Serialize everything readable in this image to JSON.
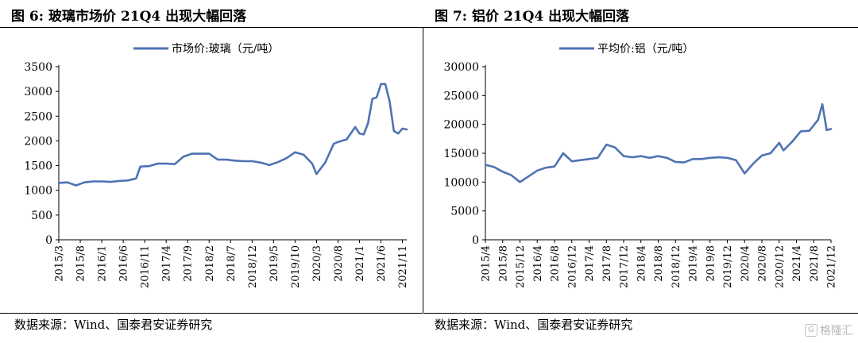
{
  "panels": [
    {
      "fig_no": "图 6:",
      "title": "玻璃市场价 21Q4 出现大幅回落",
      "source": "数据来源：Wind、国泰君安证券研究"
    },
    {
      "fig_no": "图 7:",
      "title": "铝价 21Q4 出现大幅回落",
      "source": "数据来源：Wind、国泰君安证券研究"
    }
  ],
  "watermark": "格隆汇",
  "colors": {
    "series": "#4f73b3"
  },
  "chart_data": [
    {
      "type": "line",
      "title": "",
      "ylim": [
        0,
        3500
      ],
      "yticks": [
        0,
        500,
        1000,
        1500,
        2000,
        2500,
        3000,
        3500
      ],
      "xlim": [
        "2015-03",
        "2021-12"
      ],
      "xtick_labels": [
        "2015/3",
        "2015/8",
        "2016/1",
        "2016/6",
        "2016/11",
        "2017/4",
        "2017/9",
        "2018/2",
        "2018/7",
        "2018/12",
        "2019/5",
        "2019/10",
        "2020/3",
        "2020/8",
        "2021/1",
        "2021/6",
        "2021/11"
      ],
      "legend": "top-center",
      "grid": false,
      "series": [
        {
          "name": "市场价:玻璃（元/吨）",
          "x": [
            "2015-03",
            "2015-05",
            "2015-07",
            "2015-09",
            "2015-11",
            "2016-01",
            "2016-03",
            "2016-05",
            "2016-07",
            "2016-09",
            "2016-10",
            "2016-12",
            "2017-02",
            "2017-04",
            "2017-06",
            "2017-08",
            "2017-10",
            "2017-12",
            "2018-02",
            "2018-04",
            "2018-06",
            "2018-08",
            "2018-10",
            "2018-12",
            "2019-02",
            "2019-04",
            "2019-06",
            "2019-08",
            "2019-10",
            "2019-12",
            "2020-02",
            "2020-03",
            "2020-05",
            "2020-07",
            "2020-08",
            "2020-10",
            "2020-12",
            "2021-01",
            "2021-02",
            "2021-03",
            "2021-04",
            "2021-05",
            "2021-06",
            "2021-07",
            "2021-08",
            "2021-09",
            "2021-10",
            "2021-11",
            "2021-12"
          ],
          "y": [
            1150,
            1160,
            1100,
            1160,
            1180,
            1180,
            1170,
            1190,
            1200,
            1240,
            1480,
            1490,
            1540,
            1540,
            1530,
            1680,
            1740,
            1740,
            1740,
            1620,
            1620,
            1600,
            1590,
            1590,
            1560,
            1510,
            1570,
            1650,
            1770,
            1720,
            1540,
            1330,
            1560,
            1940,
            1980,
            2030,
            2280,
            2150,
            2130,
            2360,
            2850,
            2880,
            3150,
            3150,
            2800,
            2200,
            2150,
            2250,
            2230
          ]
        }
      ]
    },
    {
      "type": "line",
      "title": "",
      "ylim": [
        0,
        30000
      ],
      "yticks": [
        0,
        5000,
        10000,
        15000,
        20000,
        25000,
        30000
      ],
      "xlim": [
        "2015-04",
        "2021-12"
      ],
      "xtick_labels": [
        "2015/4",
        "2015/8",
        "2015/12",
        "2016/4",
        "2016/8",
        "2016/12",
        "2017/4",
        "2017/8",
        "2017/12",
        "2018/4",
        "2018/8",
        "2018/12",
        "2019/4",
        "2019/8",
        "2019/12",
        "2020/4",
        "2020/8",
        "2020/12",
        "2021/4",
        "2021/8",
        "2021/12"
      ],
      "legend": "top-center",
      "grid": false,
      "series": [
        {
          "name": "平均价:铝（元/吨）",
          "x": [
            "2015-04",
            "2015-06",
            "2015-08",
            "2015-10",
            "2015-12",
            "2016-02",
            "2016-04",
            "2016-06",
            "2016-08",
            "2016-10",
            "2016-12",
            "2017-02",
            "2017-04",
            "2017-06",
            "2017-08",
            "2017-10",
            "2017-12",
            "2018-02",
            "2018-04",
            "2018-06",
            "2018-08",
            "2018-10",
            "2018-12",
            "2019-02",
            "2019-04",
            "2019-06",
            "2019-08",
            "2019-10",
            "2019-12",
            "2020-02",
            "2020-04",
            "2020-06",
            "2020-08",
            "2020-10",
            "2020-12",
            "2021-01",
            "2021-03",
            "2021-05",
            "2021-07",
            "2021-09",
            "2021-10",
            "2021-11",
            "2021-12"
          ],
          "y": [
            13000,
            12600,
            11800,
            11200,
            10000,
            11000,
            12000,
            12500,
            12700,
            15000,
            13600,
            13800,
            14000,
            14200,
            16500,
            16000,
            14500,
            14300,
            14500,
            14200,
            14500,
            14200,
            13500,
            13400,
            14000,
            14000,
            14200,
            14300,
            14200,
            13800,
            11500,
            13200,
            14600,
            15000,
            16800,
            15500,
            17000,
            18800,
            18900,
            20800,
            23500,
            19000,
            19200
          ]
        }
      ]
    }
  ]
}
